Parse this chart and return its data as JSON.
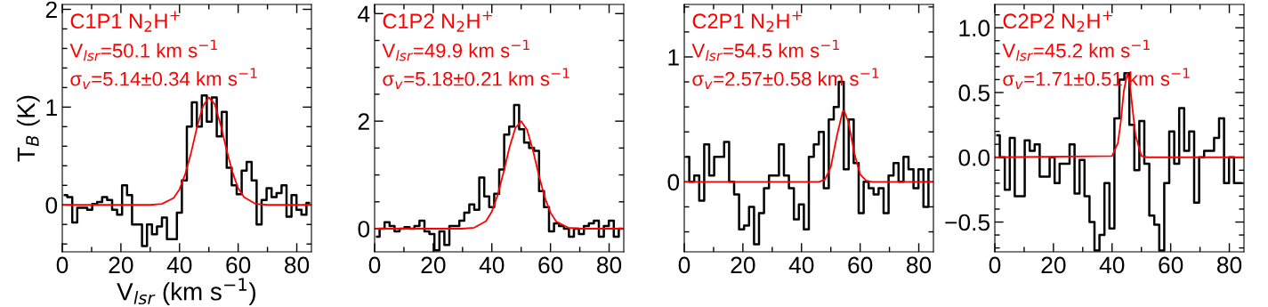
{
  "chart_data": [
    {
      "type": "step",
      "ylabel": "T$_{B}$ (K)",
      "xlabel": "V$_{lsr}$ (km s$^{−1}$)",
      "xlim": [
        0,
        85
      ],
      "ylim": [
        -0.48,
        2.05
      ],
      "xticks": [
        0,
        20,
        40,
        60,
        80
      ],
      "yticks": [
        0,
        1,
        2
      ],
      "grid": false,
      "legend": false,
      "annotations": [
        "C1P1 N$_{2}$H$^{+}$",
        "V$_{lsr}$=50.1 km s$^{−1}$",
        "σ$_{v}$=5.14±0.34 km s$^{−1}$"
      ],
      "series": [
        {
          "type": "step",
          "color": "#000000",
          "x": [
            0.85,
            2.55,
            4.25,
            5.95,
            7.65,
            9.35,
            11.05,
            12.75,
            14.45,
            16.15,
            17.85,
            19.55,
            21.25,
            22.95,
            24.65,
            26.35,
            28.05,
            29.75,
            31.45,
            33.15,
            34.85,
            36.55,
            38.25,
            39.95,
            41.65,
            43.35,
            45.05,
            46.75,
            48.45,
            50.15,
            51.85,
            53.55,
            55.25,
            56.95,
            58.65,
            60.35,
            62.05,
            63.75,
            65.45,
            67.15,
            68.85,
            70.55,
            72.25,
            73.95,
            75.65,
            77.35,
            79.05,
            80.75,
            82.45,
            84.15
          ],
          "values": [
            0.1,
            0.08,
            -0.18,
            -0.03,
            -0.03,
            -0.05,
            0.01,
            0.03,
            0.08,
            0.05,
            -0.05,
            -0.1,
            0.2,
            0.1,
            -0.2,
            -0.2,
            -0.42,
            -0.2,
            -0.3,
            -0.22,
            -0.13,
            -0.35,
            -0.35,
            -0.08,
            0.25,
            0.8,
            1.05,
            0.8,
            1.12,
            0.85,
            1.1,
            0.7,
            0.95,
            0.38,
            0.2,
            0.11,
            0.35,
            0.44,
            0.25,
            -0.2,
            0.05,
            0.17,
            0.08,
            0.12,
            0.2,
            -0.12,
            0.1,
            -0.05,
            -0.1,
            0.02
          ]
        },
        {
          "type": "line",
          "color": "#ff0000",
          "x": [
            0,
            30,
            34,
            38,
            40,
            42,
            44,
            46,
            48,
            50,
            52,
            54,
            56,
            58,
            60,
            62,
            66,
            70,
            85
          ],
          "values": [
            0,
            0,
            0.01,
            0.07,
            0.16,
            0.32,
            0.54,
            0.8,
            1.01,
            1.1,
            1.03,
            0.82,
            0.57,
            0.34,
            0.17,
            0.08,
            0.01,
            0,
            0
          ]
        }
      ]
    },
    {
      "type": "step",
      "xlim": [
        0,
        85
      ],
      "ylim": [
        -0.43,
        4.17
      ],
      "xticks": [
        0,
        20,
        40,
        60,
        80
      ],
      "yticks": [
        0,
        2,
        4
      ],
      "grid": false,
      "legend": false,
      "annotations": [
        "C1P2 N$_{2}$H$^{+}$",
        "V$_{lsr}$=49.9 km s$^{−1}$",
        "σ$_{v}$=5.18±0.21 km s$^{−1}$"
      ],
      "series": [
        {
          "type": "step",
          "color": "#000000",
          "x": [
            0.85,
            2.55,
            4.25,
            5.95,
            7.65,
            9.35,
            11.05,
            12.75,
            14.45,
            16.15,
            17.85,
            19.55,
            21.25,
            22.95,
            24.65,
            26.35,
            28.05,
            29.75,
            31.45,
            33.15,
            34.85,
            36.55,
            38.25,
            39.95,
            41.65,
            43.35,
            45.05,
            46.75,
            48.45,
            50.15,
            51.85,
            53.55,
            55.25,
            56.95,
            58.65,
            60.35,
            62.05,
            63.75,
            65.45,
            67.15,
            68.85,
            70.55,
            72.25,
            73.95,
            75.65,
            77.35,
            79.05,
            80.75,
            82.45,
            84.15
          ],
          "values": [
            -0.15,
            0.0,
            0.12,
            0.05,
            -0.05,
            0.0,
            0.03,
            0.0,
            0.05,
            0.15,
            -0.05,
            -0.1,
            -0.4,
            -0.05,
            -0.3,
            0.05,
            0.05,
            0.15,
            0.3,
            0.45,
            0.35,
            0.95,
            0.6,
            0.4,
            0.65,
            1.1,
            1.75,
            1.9,
            2.3,
            1.85,
            1.6,
            1.5,
            1.45,
            0.7,
            0.4,
            -0.05,
            0.1,
            0.05,
            0.0,
            -0.15,
            0.0,
            -0.1,
            0.05,
            0.1,
            0.15,
            -0.15,
            0.05,
            0.15,
            -0.15,
            0.0
          ]
        },
        {
          "type": "line",
          "color": "#ff0000",
          "x": [
            0,
            30,
            34,
            38,
            40,
            42,
            44,
            46,
            48,
            50,
            52,
            54,
            56,
            58,
            60,
            62,
            66,
            70,
            85
          ],
          "values": [
            0,
            0,
            0.02,
            0.14,
            0.32,
            0.63,
            1.05,
            1.51,
            1.87,
            2.0,
            1.84,
            1.46,
            1.0,
            0.59,
            0.3,
            0.13,
            0.02,
            0,
            0
          ]
        }
      ]
    },
    {
      "type": "step",
      "xlim": [
        0,
        85
      ],
      "ylim": [
        -0.56,
        1.42
      ],
      "xticks": [
        0,
        20,
        40,
        60,
        80
      ],
      "yticks": [
        0,
        1
      ],
      "grid": false,
      "legend": false,
      "annotations": [
        "C2P1 N$_{2}$H$^{+}$",
        "V$_{lsr}$=54.5 km s$^{−1}$",
        "σ$_{v}$=2.57±0.58 km s$^{−1}$"
      ],
      "series": [
        {
          "type": "step",
          "color": "#000000",
          "x": [
            0.85,
            2.55,
            4.25,
            5.95,
            7.65,
            9.35,
            11.05,
            12.75,
            14.45,
            16.15,
            17.85,
            19.55,
            21.25,
            22.95,
            24.65,
            26.35,
            28.05,
            29.75,
            31.45,
            33.15,
            34.85,
            36.55,
            38.25,
            39.95,
            41.65,
            43.35,
            45.05,
            46.75,
            48.45,
            50.15,
            51.85,
            53.55,
            55.25,
            56.95,
            58.65,
            60.35,
            62.05,
            63.75,
            65.45,
            67.15,
            68.85,
            70.55,
            72.25,
            73.95,
            75.65,
            77.35,
            79.05,
            80.75,
            82.45,
            84.15
          ],
          "values": [
            0.2,
            0.0,
            0.05,
            -0.15,
            0.3,
            0.05,
            0.2,
            0.2,
            0.32,
            0.0,
            -0.1,
            -0.38,
            -0.35,
            -0.2,
            -0.5,
            -0.25,
            -0.05,
            0.05,
            0.05,
            0.3,
            0.05,
            -0.05,
            -0.3,
            -0.18,
            -0.38,
            0.2,
            0.3,
            0.4,
            -0.05,
            0.5,
            0.6,
            0.8,
            0.1,
            0.5,
            0.15,
            -0.25,
            0.0,
            -0.05,
            -0.1,
            -0.05,
            -0.25,
            0.05,
            0.15,
            0.0,
            0.2,
            0.1,
            -0.05,
            0.1,
            -0.2,
            0.1
          ]
        },
        {
          "type": "line",
          "color": "#ff0000",
          "x": [
            0,
            44,
            46,
            48,
            50,
            52,
            54,
            54.5,
            56,
            58,
            60,
            62,
            64,
            85
          ],
          "values": [
            0,
            0,
            0,
            0.02,
            0.12,
            0.36,
            0.56,
            0.57,
            0.48,
            0.23,
            0.06,
            0.01,
            0,
            0
          ]
        }
      ]
    },
    {
      "type": "step",
      "xlim": [
        0,
        85
      ],
      "ylim": [
        -0.73,
        1.18
      ],
      "xticks": [
        0,
        20,
        40,
        60,
        80
      ],
      "yticks": [
        {
          "value": 1.0,
          "label": "1.0"
        },
        {
          "value": 0.5,
          "label": "0.5"
        },
        {
          "value": 0.0,
          "label": "0.0"
        },
        {
          "value": -0.5,
          "label": "−0.5"
        }
      ],
      "grid": false,
      "legend": false,
      "annotations": [
        "C2P2 N$_{2}$H$^{+}$",
        "V$_{lsr}$=45.2 km s$^{−1}$",
        "σ$_{v}$=1.71±0.51 km s$^{−1}$"
      ],
      "series": [
        {
          "type": "step",
          "color": "#000000",
          "x": [
            0.85,
            2.55,
            4.25,
            5.95,
            7.65,
            9.35,
            11.05,
            12.75,
            14.45,
            16.15,
            17.85,
            19.55,
            21.25,
            22.95,
            24.65,
            26.35,
            28.05,
            29.75,
            31.45,
            33.15,
            34.85,
            36.55,
            38.25,
            39.95,
            41.65,
            43.35,
            45.05,
            46.75,
            48.45,
            50.15,
            51.85,
            53.55,
            55.25,
            56.95,
            58.65,
            60.35,
            62.05,
            63.75,
            65.45,
            67.15,
            68.85,
            70.55,
            72.25,
            73.95,
            75.65,
            77.35,
            79.05,
            80.75,
            82.45,
            84.15
          ],
          "values": [
            0.17,
            0.0,
            -0.25,
            0.15,
            -0.3,
            -0.3,
            0.13,
            0.05,
            0.1,
            -0.15,
            -0.15,
            0.0,
            -0.2,
            -0.05,
            -0.05,
            0.1,
            -0.28,
            -0.02,
            -0.3,
            -0.5,
            -0.72,
            -0.6,
            -0.2,
            -0.55,
            0.3,
            0.6,
            0.65,
            0.25,
            -0.1,
            0.28,
            -0.05,
            -0.45,
            -0.52,
            -0.72,
            -0.2,
            0.2,
            -0.05,
            0.38,
            0.05,
            0.2,
            -0.35,
            0.0,
            0.05,
            0.05,
            0.15,
            0.3,
            -0.2,
            0.0,
            -0.2,
            -0.2
          ]
        },
        {
          "type": "line",
          "color": "#ff0000",
          "x": [
            0,
            40,
            42,
            43,
            44,
            45.2,
            46,
            47,
            48,
            50,
            52,
            85
          ],
          "values": [
            0,
            0.01,
            0.11,
            0.28,
            0.51,
            0.65,
            0.58,
            0.37,
            0.17,
            0.01,
            0,
            0
          ]
        }
      ]
    }
  ]
}
